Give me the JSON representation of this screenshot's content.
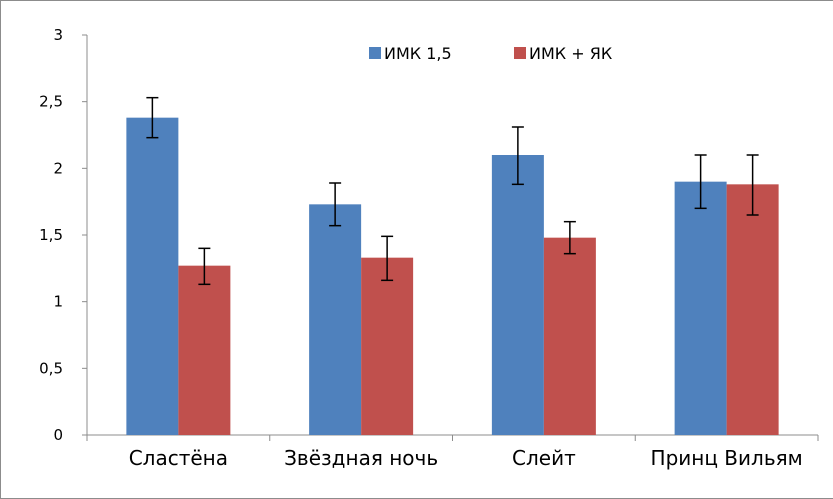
{
  "chart_data": {
    "type": "bar",
    "categories": [
      "Сластёна",
      "Звёздная ночь",
      "Слейт",
      "Принц Вильям"
    ],
    "series": [
      {
        "name": "ИМК 1,5",
        "color": "#4f81bd",
        "values": [
          2.38,
          1.73,
          2.1,
          1.9
        ],
        "error_low": [
          2.23,
          1.57,
          1.88,
          1.7
        ],
        "error_high": [
          2.53,
          1.89,
          2.31,
          2.1
        ]
      },
      {
        "name": "ИМК + ЯК",
        "color": "#c0504d",
        "values": [
          1.27,
          1.33,
          1.48,
          1.88
        ],
        "error_low": [
          1.13,
          1.16,
          1.36,
          1.65
        ],
        "error_high": [
          1.4,
          1.49,
          1.6,
          2.1
        ]
      }
    ],
    "yticks": [
      "0",
      "0,5",
      "1",
      "1,5",
      "2",
      "2,5",
      "3"
    ],
    "ylim": [
      0,
      3
    ],
    "legend": "top-center",
    "grid": false
  }
}
